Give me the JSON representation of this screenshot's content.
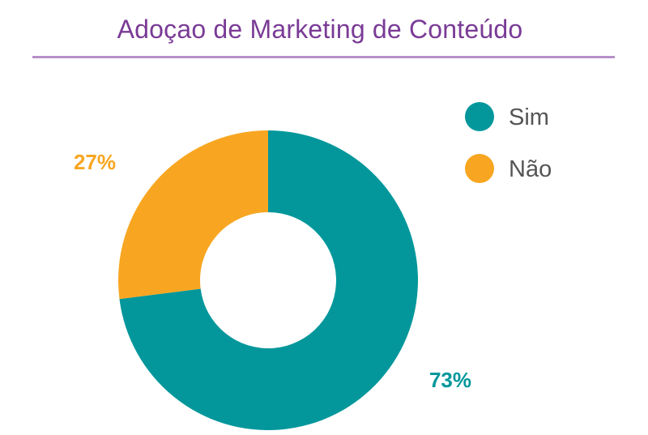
{
  "colors": {
    "title": "#7a3b96",
    "rule": "#b78fc9",
    "sim": "#03979b",
    "nao": "#f8a621",
    "legend_text": "#555555"
  },
  "chart_data": {
    "type": "pie",
    "variant": "donut",
    "title": "Adoçao de Marketing de Conteúdo",
    "legend_position": "top-right",
    "slices": [
      {
        "name": "Sim",
        "value": 73,
        "label": "73%",
        "color": "#03979b"
      },
      {
        "name": "Não",
        "value": 27,
        "label": "27%",
        "color": "#f8a621"
      }
    ]
  }
}
